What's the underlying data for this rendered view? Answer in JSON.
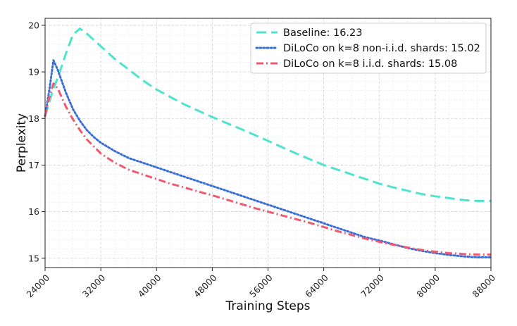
{
  "chart_data": {
    "type": "line",
    "xlabel": "Training Steps",
    "ylabel": "Perplexity",
    "xlim": [
      24000,
      88000
    ],
    "ylim": [
      14.8,
      20.15
    ],
    "xticks": [
      24000,
      32000,
      40000,
      48000,
      56000,
      64000,
      72000,
      80000,
      88000
    ],
    "xtick_labels": [
      "24000",
      "32000",
      "40000",
      "48000",
      "56000",
      "64000",
      "72000",
      "80000",
      "88000"
    ],
    "yticks": [
      15,
      16,
      17,
      18,
      19,
      20
    ],
    "ytick_labels": [
      "15",
      "16",
      "17",
      "18",
      "19",
      "20"
    ],
    "grid": true,
    "legend_position": "top-right",
    "series": [
      {
        "name": "Baseline: 16.23",
        "color": "#4fe3cd",
        "style": "dashed",
        "x": [
          24000,
          25000,
          26000,
          27000,
          28000,
          29000,
          30000,
          32000,
          34000,
          36000,
          38000,
          40000,
          44000,
          48000,
          52000,
          56000,
          60000,
          64000,
          68000,
          72000,
          74000,
          76000,
          78000,
          80000,
          82000,
          84000,
          86000,
          88000
        ],
        "y": [
          18.05,
          18.55,
          18.95,
          19.4,
          19.8,
          19.93,
          19.82,
          19.55,
          19.28,
          19.05,
          18.82,
          18.62,
          18.3,
          18.03,
          17.78,
          17.52,
          17.25,
          17.0,
          16.8,
          16.6,
          16.52,
          16.45,
          16.38,
          16.33,
          16.29,
          16.25,
          16.23,
          16.23
        ]
      },
      {
        "name": "DiLoCo on k=8 non-i.i.d. shards: 15.02",
        "color": "#3a6fd8",
        "style": "dotted",
        "x": [
          24000,
          24600,
          25200,
          25800,
          26400,
          27000,
          28000,
          29000,
          30000,
          31000,
          32000,
          34000,
          36000,
          38000,
          40000,
          42000,
          44000,
          46000,
          48000,
          50000,
          52000,
          54000,
          56000,
          58000,
          60000,
          62000,
          64000,
          66000,
          68000,
          70000,
          72000,
          74000,
          76000,
          78000,
          80000,
          82000,
          84000,
          86000,
          88000
        ],
        "y": [
          18.05,
          18.6,
          19.25,
          19.05,
          18.8,
          18.55,
          18.2,
          17.95,
          17.75,
          17.6,
          17.48,
          17.3,
          17.15,
          17.05,
          16.95,
          16.85,
          16.75,
          16.65,
          16.55,
          16.45,
          16.35,
          16.25,
          16.15,
          16.05,
          15.95,
          15.85,
          15.75,
          15.65,
          15.55,
          15.45,
          15.38,
          15.3,
          15.22,
          15.16,
          15.11,
          15.07,
          15.04,
          15.02,
          15.02
        ]
      },
      {
        "name": "DiLoCo on k=8 i.i.d. shards: 15.08",
        "color": "#ee5a70",
        "style": "dashdot",
        "x": [
          24000,
          24600,
          25200,
          25800,
          26400,
          27000,
          28000,
          29000,
          30000,
          31000,
          32000,
          34000,
          36000,
          38000,
          40000,
          42000,
          44000,
          46000,
          48000,
          50000,
          52000,
          54000,
          56000,
          58000,
          60000,
          62000,
          64000,
          66000,
          68000,
          70000,
          72000,
          74000,
          76000,
          78000,
          80000,
          82000,
          84000,
          86000,
          88000
        ],
        "y": [
          18.05,
          18.45,
          18.75,
          18.65,
          18.45,
          18.25,
          17.98,
          17.75,
          17.55,
          17.4,
          17.25,
          17.05,
          16.9,
          16.8,
          16.7,
          16.6,
          16.52,
          16.43,
          16.35,
          16.26,
          16.17,
          16.08,
          16.0,
          15.92,
          15.84,
          15.76,
          15.67,
          15.58,
          15.5,
          15.42,
          15.35,
          15.29,
          15.23,
          15.18,
          15.14,
          15.11,
          15.09,
          15.08,
          15.08
        ]
      }
    ]
  }
}
